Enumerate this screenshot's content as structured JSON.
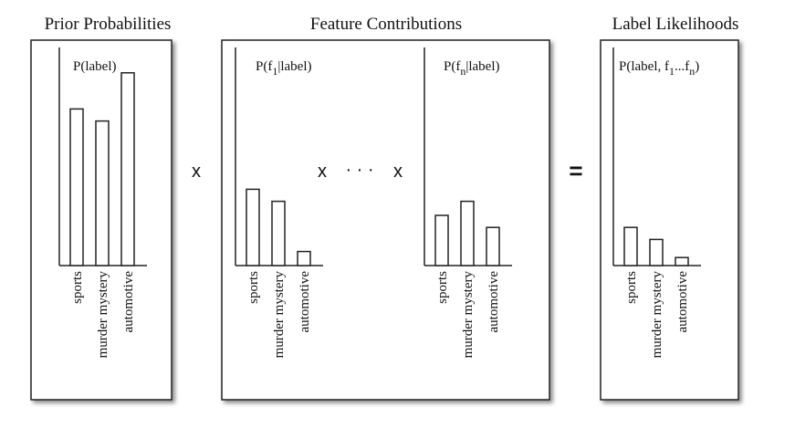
{
  "panels": [
    {
      "title": "Prior Probabilities",
      "charts": [
        {
          "label": "P(label)",
          "categories": [
            "sports",
            "murder mystery",
            "automotive"
          ],
          "values": [
            0.78,
            0.72,
            0.96
          ]
        }
      ]
    },
    {
      "title": "Feature Contributions",
      "charts": [
        {
          "label_parts": [
            "P(f",
            "1",
            "|label)"
          ],
          "categories": [
            "sports",
            "murder mystery",
            "automotive"
          ],
          "values": [
            0.38,
            0.32,
            0.07
          ]
        },
        {
          "label_parts": [
            "P(f",
            "n",
            "|label)"
          ],
          "categories": [
            "sports",
            "murder mystery",
            "automotive"
          ],
          "values": [
            0.25,
            0.32,
            0.19
          ]
        }
      ]
    },
    {
      "title": "Label Likelihoods",
      "charts": [
        {
          "label_parts": [
            "P(label, f",
            "1",
            "...f",
            "n",
            ")"
          ],
          "categories": [
            "sports",
            "murder mystery",
            "automotive"
          ],
          "values": [
            0.19,
            0.13,
            0.04
          ]
        }
      ]
    }
  ],
  "operators": {
    "times": "x",
    "ellipsis": "· · ·",
    "equals": "="
  }
}
